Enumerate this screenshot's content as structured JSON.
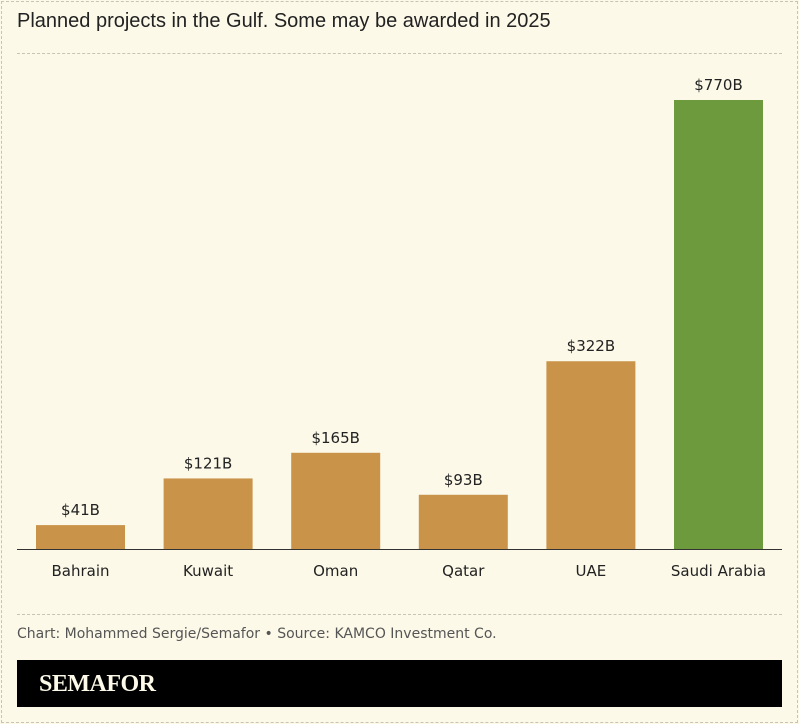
{
  "title": "Planned projects in the Gulf. Some may be awarded in 2025",
  "credit": "Chart: Mohammed Sergie/Semafor • Source: KAMCO Investment Co.",
  "logo": "SEMAFOR",
  "chart_data": {
    "type": "bar",
    "title": "Planned projects in the Gulf. Some may be awarded in 2025",
    "categories": [
      "Bahrain",
      "Kuwait",
      "Oman",
      "Qatar",
      "UAE",
      "Saudi Arabia"
    ],
    "values": [
      41,
      121,
      165,
      93,
      322,
      770
    ],
    "labels": [
      "$41B",
      "$121B",
      "$165B",
      "$93B",
      "$322B",
      "$770B"
    ],
    "unit": "USD billions",
    "colors": [
      "#c9944a",
      "#c9944a",
      "#c9944a",
      "#c9944a",
      "#c9944a",
      "#6e9a3e"
    ],
    "ylim": [
      0,
      770
    ],
    "grid": false
  }
}
